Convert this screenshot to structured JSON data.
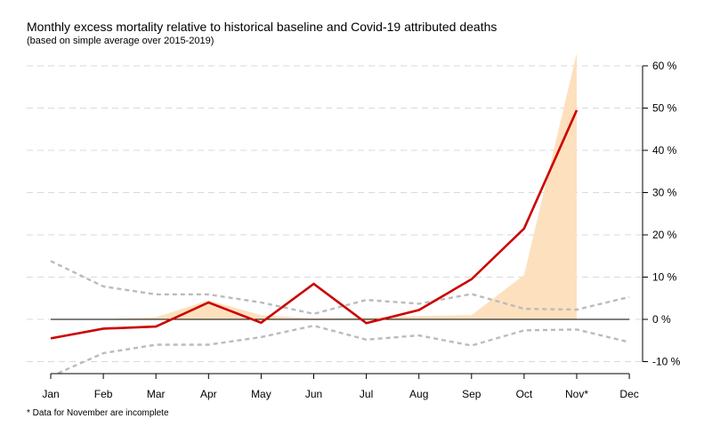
{
  "chart_data": {
    "type": "line",
    "title": "Monthly excess mortality relative to historical baseline and Covid-19 attributed deaths",
    "subtitle": "(based on simple average over 2015-2019)",
    "footnote": "* Data for November are incomplete",
    "categories": [
      "Jan",
      "Feb",
      "Mar",
      "Apr",
      "May",
      "Jun",
      "Jul",
      "Aug",
      "Sep",
      "Oct",
      "Nov*",
      "Dec"
    ],
    "y_ticks": [
      -10,
      0,
      10,
      20,
      30,
      40,
      50,
      60
    ],
    "y_tick_labels": [
      "-10 %",
      "0 %",
      "10 %",
      "20 %",
      "30 %",
      "40 %",
      "50 %",
      "60 %"
    ],
    "ylim": [
      -13,
      63
    ],
    "grid": "horizontal dashed",
    "y_axis_position": "right",
    "series": [
      {
        "role": "covid-attributed-deaths",
        "style": "area",
        "color": "#fde0be",
        "values": [
          0,
          0,
          0.5,
          4.5,
          1.0,
          0.2,
          0.4,
          0.8,
          1.0,
          10.5,
          63,
          null
        ]
      },
      {
        "role": "excess-mortality",
        "style": "line",
        "color": "#cc0000",
        "values": [
          -4.5,
          -2.2,
          -1.7,
          4.0,
          -0.8,
          8.4,
          -0.9,
          2.2,
          9.5,
          21.5,
          49.5,
          null
        ]
      },
      {
        "role": "upper-band",
        "style": "dashed",
        "color": "#bbbbbb",
        "values": [
          13.8,
          7.8,
          5.9,
          5.9,
          4.0,
          1.3,
          4.6,
          3.7,
          6.0,
          2.5,
          2.3,
          5.3
        ]
      },
      {
        "role": "lower-band",
        "style": "dashed",
        "color": "#bbbbbb",
        "values": [
          -13.5,
          -8.0,
          -6.0,
          -6.0,
          -4.2,
          -1.5,
          -4.8,
          -3.8,
          -6.2,
          -2.6,
          -2.4,
          -5.4
        ]
      }
    ]
  }
}
